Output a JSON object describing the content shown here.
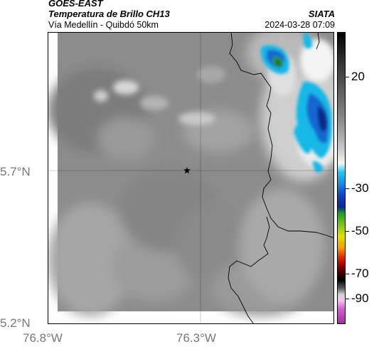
{
  "header": {
    "satellite": "GOES-EAST",
    "product": "Temperatura de Brillo CH13",
    "region": "Vía Medellín - Quibdó 50km",
    "organization": "SIATA",
    "timestamp": "2024-03-28 07:09"
  },
  "map": {
    "lat_labels": [
      "5.7°N",
      "5.2°N"
    ],
    "lon_labels": [
      "76.8°W",
      "76.3°W"
    ],
    "marker_icon": "star-icon"
  },
  "colorbar": {
    "ticks": [
      "20",
      "-30",
      "-50",
      "-70",
      "-90"
    ]
  }
}
